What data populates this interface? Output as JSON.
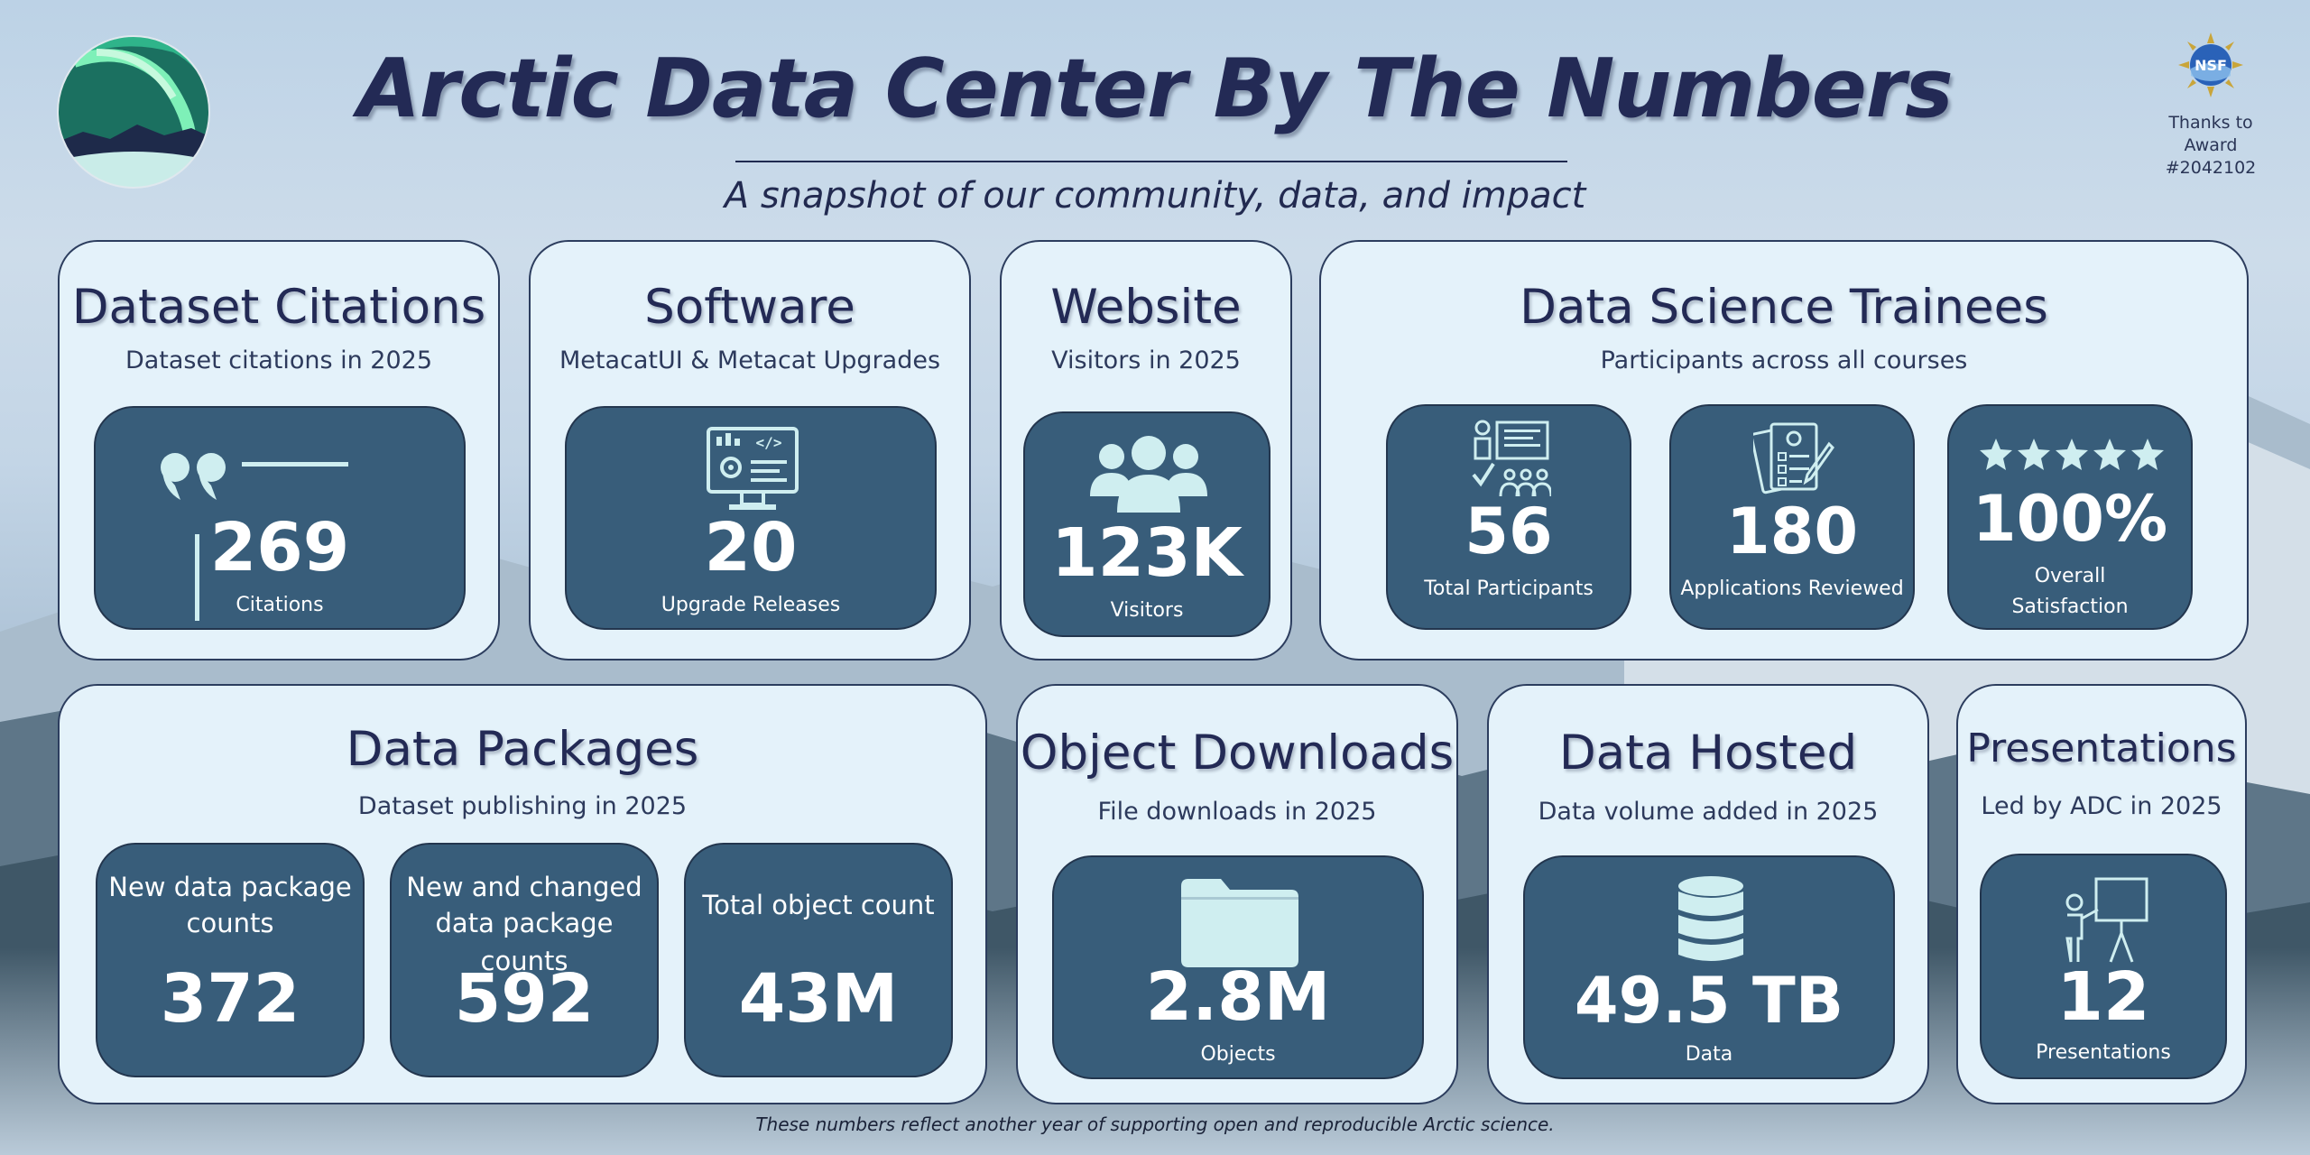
{
  "header": {
    "title": "Arctic Data Center By The Numbers",
    "subtitle": "A snapshot of our community, data, and impact",
    "award": {
      "line1": "Thanks to",
      "line2": "Award",
      "line3": "#2042102",
      "logo_text": "NSF"
    }
  },
  "cards": {
    "citations": {
      "title": "Dataset Citations",
      "subtitle": "Dataset citations in 2025",
      "value": "269",
      "label": "Citations"
    },
    "software": {
      "title": "Software",
      "subtitle": "MetacatUI & Metacat Upgrades",
      "value": "20",
      "label": "Upgrade Releases"
    },
    "website": {
      "title": "Website",
      "subtitle": "Visitors in 2025",
      "value": "123K",
      "label": "Visitors"
    },
    "trainees": {
      "title": "Data Science Trainees",
      "subtitle": "Participants across all courses",
      "participants": {
        "value": "56",
        "label": "Total Participants"
      },
      "applications": {
        "value": "180",
        "label": "Applications Reviewed"
      },
      "satisfaction": {
        "value": "100%",
        "label_line1": "Overall",
        "label_line2": "Satisfaction",
        "stars": 5
      }
    },
    "packages": {
      "title": "Data Packages",
      "subtitle": "Dataset publishing in 2025",
      "new": {
        "head_line1": "New data package",
        "head_line2": "counts",
        "value": "372"
      },
      "changed": {
        "head_line1": "New and changed",
        "head_line2": "data package counts",
        "value": "592"
      },
      "objects": {
        "head": "Total object count",
        "value": "43M"
      }
    },
    "downloads": {
      "title": "Object Downloads",
      "subtitle": "File downloads in 2025",
      "value": "2.8M",
      "label": "Objects"
    },
    "hosted": {
      "title": "Data Hosted",
      "subtitle": "Data volume added in 2025",
      "value": "49.5 TB",
      "label": "Data"
    },
    "presentations": {
      "title": "Presentations",
      "subtitle": "Led by ADC in 2025",
      "value": "12",
      "label": "Presentations"
    }
  },
  "footer": "These numbers reflect another year of supporting open and reproducible Arctic science.",
  "colors": {
    "card_bg": "#e4f2fa",
    "tile_bg": "#385d7a",
    "title_text": "#232a55",
    "icon_light": "#cfeef0"
  }
}
